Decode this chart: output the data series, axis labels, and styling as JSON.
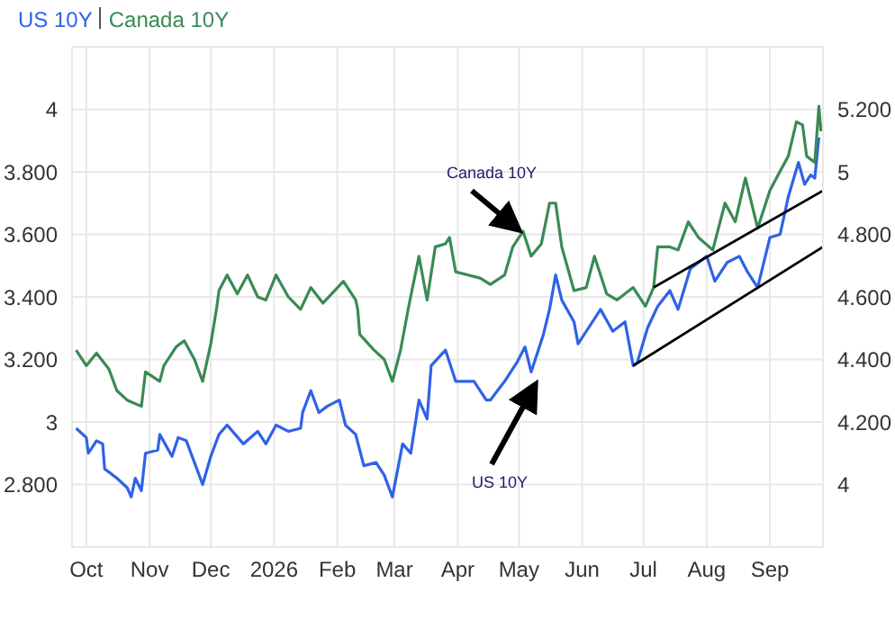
{
  "chart_data": {
    "type": "line",
    "legend": "top left",
    "grid": true,
    "marker": "none",
    "line_style": "solid",
    "xlim": [
      "2025-09-24",
      "2026-09-27"
    ],
    "xticks": [
      {
        "value": "2025-10-01",
        "label": "Oct"
      },
      {
        "value": "2025-11-01",
        "label": "Nov"
      },
      {
        "value": "2025-12-01",
        "label": "Dec"
      },
      {
        "value": "2026-01-01",
        "label": "2026"
      },
      {
        "value": "2026-02-01",
        "label": "Feb"
      },
      {
        "value": "2026-03-01",
        "label": "Mar"
      },
      {
        "value": "2026-04-01",
        "label": "Apr"
      },
      {
        "value": "2026-05-01",
        "label": "May"
      },
      {
        "value": "2026-06-01",
        "label": "Jun"
      },
      {
        "value": "2026-07-01",
        "label": "Jul"
      },
      {
        "value": "2026-08-01",
        "label": "Aug"
      },
      {
        "value": "2026-09-01",
        "label": "Sep"
      }
    ],
    "ylim": [
      2.6,
      4.2
    ],
    "yticks": [
      {
        "value": 2.8,
        "label": "2.800"
      },
      3,
      {
        "value": 3.2,
        "label": "3.200"
      },
      {
        "value": 3.4,
        "label": "3.400"
      },
      {
        "value": 3.6,
        "label": "3.600"
      },
      {
        "value": 3.8,
        "label": "3.800"
      },
      4
    ],
    "y2lim": [
      3.8,
      5.4
    ],
    "y2ticks": [
      4,
      {
        "value": 4.2,
        "label": "4.200"
      },
      {
        "value": 4.4,
        "label": "4.400"
      },
      {
        "value": 4.6,
        "label": "4.600"
      },
      {
        "value": 4.8,
        "label": "4.800"
      },
      5,
      {
        "value": 5.2,
        "label": "5.200"
      }
    ],
    "annotations": [
      "Canada 10Y",
      "US 10Y"
    ],
    "series": [
      {
        "name": "US 10Y",
        "color": "#2f62e8",
        "axis": "y2",
        "x": [
          "2025-09-26",
          "2025-10-01",
          "2025-10-02",
          "2025-10-06",
          "2025-10-09",
          "2025-10-10",
          "2025-10-16",
          "2025-10-21",
          "2025-10-23",
          "2025-10-25",
          "2025-10-28",
          "2025-10-30",
          "2025-11-05",
          "2025-11-06",
          "2025-11-12",
          "2025-11-15",
          "2025-11-19",
          "2025-11-23",
          "2025-11-27",
          "2025-12-01",
          "2025-12-05",
          "2025-12-09",
          "2025-12-17",
          "2025-12-24",
          "2025-12-28",
          "2026-01-02",
          "2026-01-08",
          "2026-01-14",
          "2026-01-15",
          "2026-01-19",
          "2026-01-23",
          "2026-01-27",
          "2026-02-02",
          "2026-02-05",
          "2026-02-10",
          "2026-02-14",
          "2026-02-20",
          "2026-02-24",
          "2026-02-28",
          "2026-03-05",
          "2026-03-09",
          "2026-03-13",
          "2026-03-17",
          "2026-03-19",
          "2026-03-26",
          "2026-03-31",
          "2026-04-09",
          "2026-04-15",
          "2026-04-17",
          "2026-04-24",
          "2026-04-30",
          "2026-05-04",
          "2026-05-07",
          "2026-05-13",
          "2026-05-16",
          "2026-05-19",
          "2026-05-22",
          "2026-05-28",
          "2026-05-30",
          "2026-06-04",
          "2026-06-10",
          "2026-06-16",
          "2026-06-22",
          "2026-06-26",
          "2026-06-28",
          "2026-07-03",
          "2026-07-08",
          "2026-07-14",
          "2026-07-18",
          "2026-07-24",
          "2026-08-01",
          "2026-08-05",
          "2026-08-11",
          "2026-08-17",
          "2026-08-21",
          "2026-08-26",
          "2026-09-01",
          "2026-09-06",
          "2026-09-10",
          "2026-09-15",
          "2026-09-18",
          "2026-09-21",
          "2026-09-23",
          "2026-09-25"
        ],
        "values": [
          4.18,
          4.15,
          4.1,
          4.14,
          4.13,
          4.05,
          4.02,
          3.99,
          3.96,
          4.02,
          3.98,
          4.1,
          4.11,
          4.16,
          4.09,
          4.15,
          4.14,
          4.07,
          4.0,
          4.09,
          4.16,
          4.19,
          4.13,
          4.17,
          4.13,
          4.19,
          4.17,
          4.18,
          4.23,
          4.3,
          4.23,
          4.25,
          4.27,
          4.19,
          4.16,
          4.06,
          4.07,
          4.03,
          3.96,
          4.13,
          4.1,
          4.27,
          4.21,
          4.38,
          4.43,
          4.33,
          4.33,
          4.27,
          4.27,
          4.33,
          4.39,
          4.44,
          4.36,
          4.48,
          4.56,
          4.67,
          4.59,
          4.52,
          4.45,
          4.5,
          4.56,
          4.49,
          4.52,
          4.38,
          4.39,
          4.5,
          4.57,
          4.62,
          4.56,
          4.69,
          4.73,
          4.65,
          4.71,
          4.73,
          4.68,
          4.63,
          4.79,
          4.8,
          4.92,
          5.03,
          4.96,
          4.99,
          4.98,
          5.11
        ]
      },
      {
        "name": "Canada 10Y",
        "color": "#3a8a55",
        "x": [
          "2025-09-26",
          "2025-10-01",
          "2025-10-06",
          "2025-10-12",
          "2025-10-16",
          "2025-10-21",
          "2025-10-28",
          "2025-10-30",
          "2025-11-06",
          "2025-11-08",
          "2025-11-14",
          "2025-11-18",
          "2025-11-23",
          "2025-11-27",
          "2025-12-01",
          "2025-12-04",
          "2025-12-05",
          "2025-12-09",
          "2025-12-14",
          "2025-12-19",
          "2025-12-24",
          "2025-12-28",
          "2026-01-02",
          "2026-01-08",
          "2026-01-14",
          "2026-01-19",
          "2026-01-25",
          "2026-02-04",
          "2026-02-10",
          "2026-02-11",
          "2026-02-12",
          "2026-02-19",
          "2026-02-24",
          "2026-02-28",
          "2026-03-04",
          "2026-03-08",
          "2026-03-13",
          "2026-03-17",
          "2026-03-21",
          "2026-03-26",
          "2026-03-28",
          "2026-03-31",
          "2026-04-12",
          "2026-04-17",
          "2026-04-24",
          "2026-04-28",
          "2026-05-03",
          "2026-05-07",
          "2026-05-12",
          "2026-05-16",
          "2026-05-19",
          "2026-05-22",
          "2026-05-28",
          "2026-06-03",
          "2026-06-07",
          "2026-06-13",
          "2026-06-18",
          "2026-06-26",
          "2026-07-02",
          "2026-07-06",
          "2026-07-08",
          "2026-07-14",
          "2026-07-18",
          "2026-07-23",
          "2026-07-28",
          "2026-08-04",
          "2026-08-10",
          "2026-08-15",
          "2026-08-20",
          "2026-08-26",
          "2026-09-01",
          "2026-09-05",
          "2026-09-10",
          "2026-09-14",
          "2026-09-17",
          "2026-09-19",
          "2026-09-23",
          "2026-09-25",
          "2026-09-26"
        ],
        "values": [
          3.23,
          3.18,
          3.22,
          3.17,
          3.1,
          3.07,
          3.05,
          3.16,
          3.13,
          3.18,
          3.24,
          3.26,
          3.2,
          3.13,
          3.25,
          3.37,
          3.42,
          3.47,
          3.41,
          3.47,
          3.4,
          3.39,
          3.47,
          3.4,
          3.36,
          3.43,
          3.38,
          3.45,
          3.39,
          3.36,
          3.28,
          3.23,
          3.2,
          3.13,
          3.23,
          3.37,
          3.53,
          3.39,
          3.56,
          3.57,
          3.59,
          3.48,
          3.46,
          3.44,
          3.47,
          3.56,
          3.61,
          3.53,
          3.57,
          3.7,
          3.7,
          3.56,
          3.42,
          3.43,
          3.53,
          3.41,
          3.39,
          3.43,
          3.37,
          3.43,
          3.56,
          3.56,
          3.55,
          3.64,
          3.59,
          3.55,
          3.7,
          3.64,
          3.78,
          3.62,
          3.74,
          3.79,
          3.85,
          3.96,
          3.95,
          3.85,
          3.83,
          4.01,
          3.93
        ]
      },
      {
        "type": "line",
        "color": "#000000",
        "x": [
          "2026-07-06",
          "2026-09-27"
        ],
        "values": [
          3.43,
          3.74
        ]
      },
      {
        "type": "line",
        "color": "#000000",
        "x": [
          "2026-06-26",
          "2026-09-27"
        ],
        "values": [
          3.18,
          3.56
        ]
      }
    ]
  }
}
